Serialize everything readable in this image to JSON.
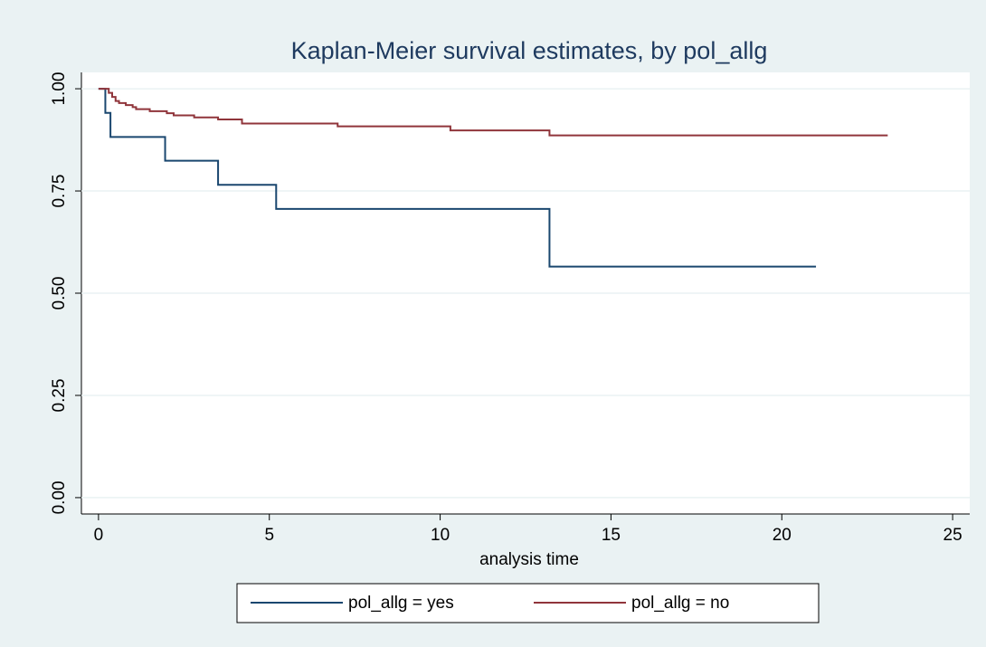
{
  "chart_data": {
    "type": "step",
    "title": "Kaplan-Meier survival estimates, by pol_allg",
    "xlabel": "analysis time",
    "xlim": [
      -0.5,
      25.5
    ],
    "xticks": [
      0,
      5,
      10,
      15,
      20,
      25
    ],
    "ylim": [
      -0.04,
      1.04
    ],
    "yticks": [
      {
        "value": 0,
        "label": "0.00"
      },
      {
        "value": 0.25,
        "label": "0.25"
      },
      {
        "value": 0.5,
        "label": "0.50"
      },
      {
        "value": 0.75,
        "label": "0.75"
      },
      {
        "value": 1,
        "label": "1.00"
      }
    ],
    "grid": true,
    "legend": "bottom",
    "series": [
      {
        "name": "pol_allg = yes",
        "color": "#1a476f",
        "x": [
          0,
          0.2,
          0.35,
          1.95,
          3.5,
          5.2,
          13.2,
          21.0
        ],
        "values": [
          1.0,
          0.941,
          0.882,
          0.824,
          0.765,
          0.706,
          0.565,
          0.565
        ]
      },
      {
        "name": "pol_allg = no",
        "color": "#90353b",
        "x": [
          0,
          0.3,
          0.4,
          0.5,
          0.6,
          0.8,
          1.0,
          1.1,
          1.5,
          2.0,
          2.2,
          2.8,
          3.5,
          4.2,
          7.0,
          10.3,
          13.2,
          23.1
        ],
        "values": [
          1.0,
          0.99,
          0.98,
          0.97,
          0.965,
          0.96,
          0.955,
          0.95,
          0.945,
          0.94,
          0.935,
          0.93,
          0.925,
          0.915,
          0.908,
          0.898,
          0.886,
          0.886
        ]
      }
    ]
  }
}
